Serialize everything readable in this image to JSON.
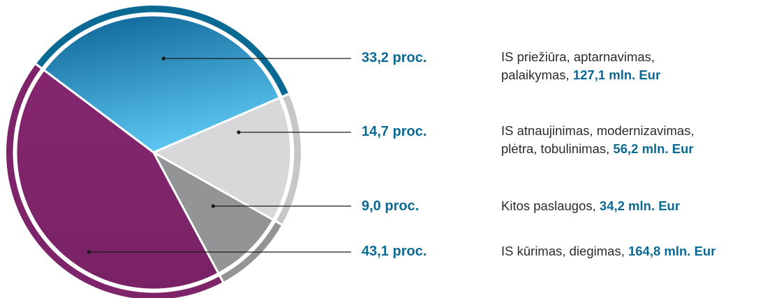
{
  "colors": {
    "accent": "#0a6a94",
    "is_prieziura": "#2b8ec6",
    "is_atnaujinimas": "#d8d8da",
    "kitos": "#939496",
    "is_kurimas": "#7e246a",
    "leader_line": "#1a1a1a"
  },
  "chart_data": {
    "type": "pie",
    "title": "",
    "legend_position": "right",
    "slices": [
      {
        "percent_label": "33,2 proc.",
        "value": 33.2,
        "desc_line1": "IS priežiūra, aptarnavimas,",
        "desc_line2": "palaikymas, ",
        "amount": "127,1 mln. Eur"
      },
      {
        "percent_label": "14,7 proc.",
        "value": 14.7,
        "desc_line1": "IS atnaujinimas, modernizavimas,",
        "desc_line2": "plėtra, tobulinimas, ",
        "amount": "56,2 mln. Eur"
      },
      {
        "percent_label": "9,0 proc.",
        "value": 9.0,
        "desc_line1": "",
        "desc_line2": "Kitos paslaugos, ",
        "amount": "34,2 mln. Eur"
      },
      {
        "percent_label": "43,1 proc.",
        "value": 43.1,
        "desc_line1": "",
        "desc_line2": "IS kūrimas, diegimas, ",
        "amount": "164,8 mln. Eur"
      }
    ]
  }
}
